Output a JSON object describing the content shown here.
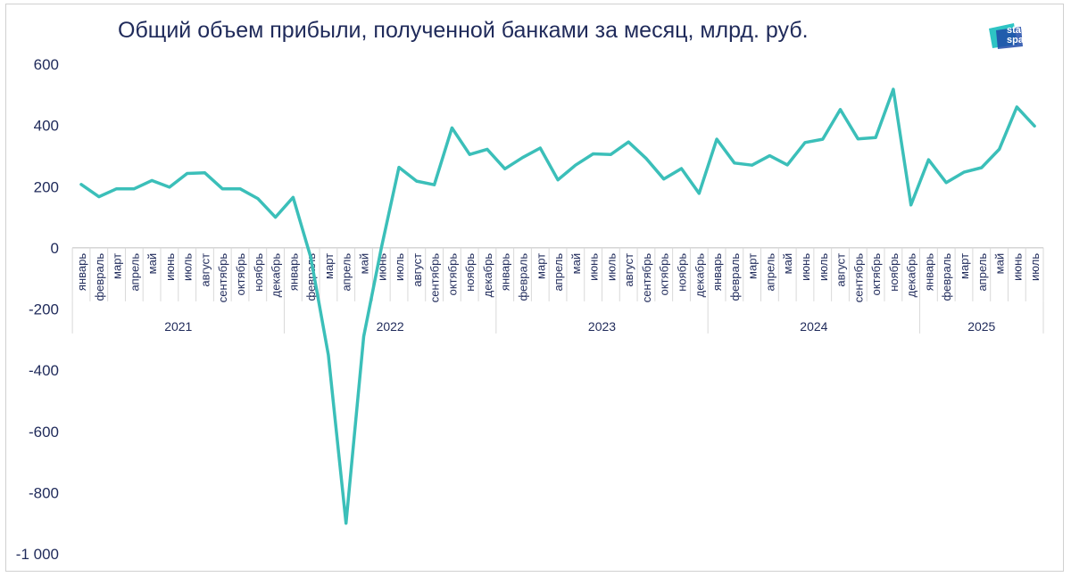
{
  "title": "Общий объем прибыли, полученной банками за месяц, млрд. руб.",
  "logo": {
    "line1": "stat",
    "line2": "space",
    "colors": [
      "#2ec4c4",
      "#1f4aa8"
    ]
  },
  "chart_data": {
    "type": "line",
    "title": "Общий объем прибыли, полученной банками за месяц, млрд. руб.",
    "xlabel": "",
    "ylabel": "",
    "ylim": [
      -1000,
      600
    ],
    "yticks": [
      600,
      400,
      200,
      0,
      -200,
      -400,
      -600,
      -800,
      -1000
    ],
    "ytick_labels": [
      "600",
      "400",
      "200",
      "0",
      "-200",
      "-400",
      "-600",
      "-800",
      "-1 000"
    ],
    "grid": false,
    "line_color": "#3bbfb9",
    "years": [
      {
        "label": "2021",
        "months": 12
      },
      {
        "label": "2022",
        "months": 12
      },
      {
        "label": "2023",
        "months": 12
      },
      {
        "label": "2024",
        "months": 12
      },
      {
        "label": "2025",
        "months": 7
      }
    ],
    "categories": [
      "январь",
      "февраль",
      "март",
      "апрель",
      "май",
      "июнь",
      "июль",
      "август",
      "сентябрь",
      "октябрь",
      "ноябрь",
      "декабрь",
      "январь",
      "февраль",
      "март",
      "апрель",
      "май",
      "июнь",
      "июль",
      "август",
      "сентябрь",
      "октябрь",
      "ноябрь",
      "декабрь",
      "январь",
      "февраль",
      "март",
      "апрель",
      "май",
      "июнь",
      "июль",
      "август",
      "сентябрь",
      "октябрь",
      "ноябрь",
      "декабрь",
      "январь",
      "февраль",
      "март",
      "апрель",
      "май",
      "июнь",
      "июль",
      "август",
      "сентябрь",
      "октябрь",
      "ноябрь",
      "декабрь",
      "январь",
      "февраль",
      "март",
      "апрель",
      "май",
      "июнь",
      "июль"
    ],
    "values": [
      207,
      167,
      193,
      193,
      220,
      198,
      243,
      245,
      193,
      193,
      161,
      100,
      165,
      -30,
      -350,
      -900,
      -290,
      0,
      263,
      218,
      206,
      392,
      305,
      322,
      258,
      295,
      326,
      222,
      270,
      307,
      305,
      346,
      292,
      225,
      259,
      178,
      355,
      277,
      270,
      301,
      271,
      344,
      355,
      452,
      356,
      360,
      518,
      140,
      288,
      213,
      247,
      262,
      322,
      460,
      398
    ]
  }
}
